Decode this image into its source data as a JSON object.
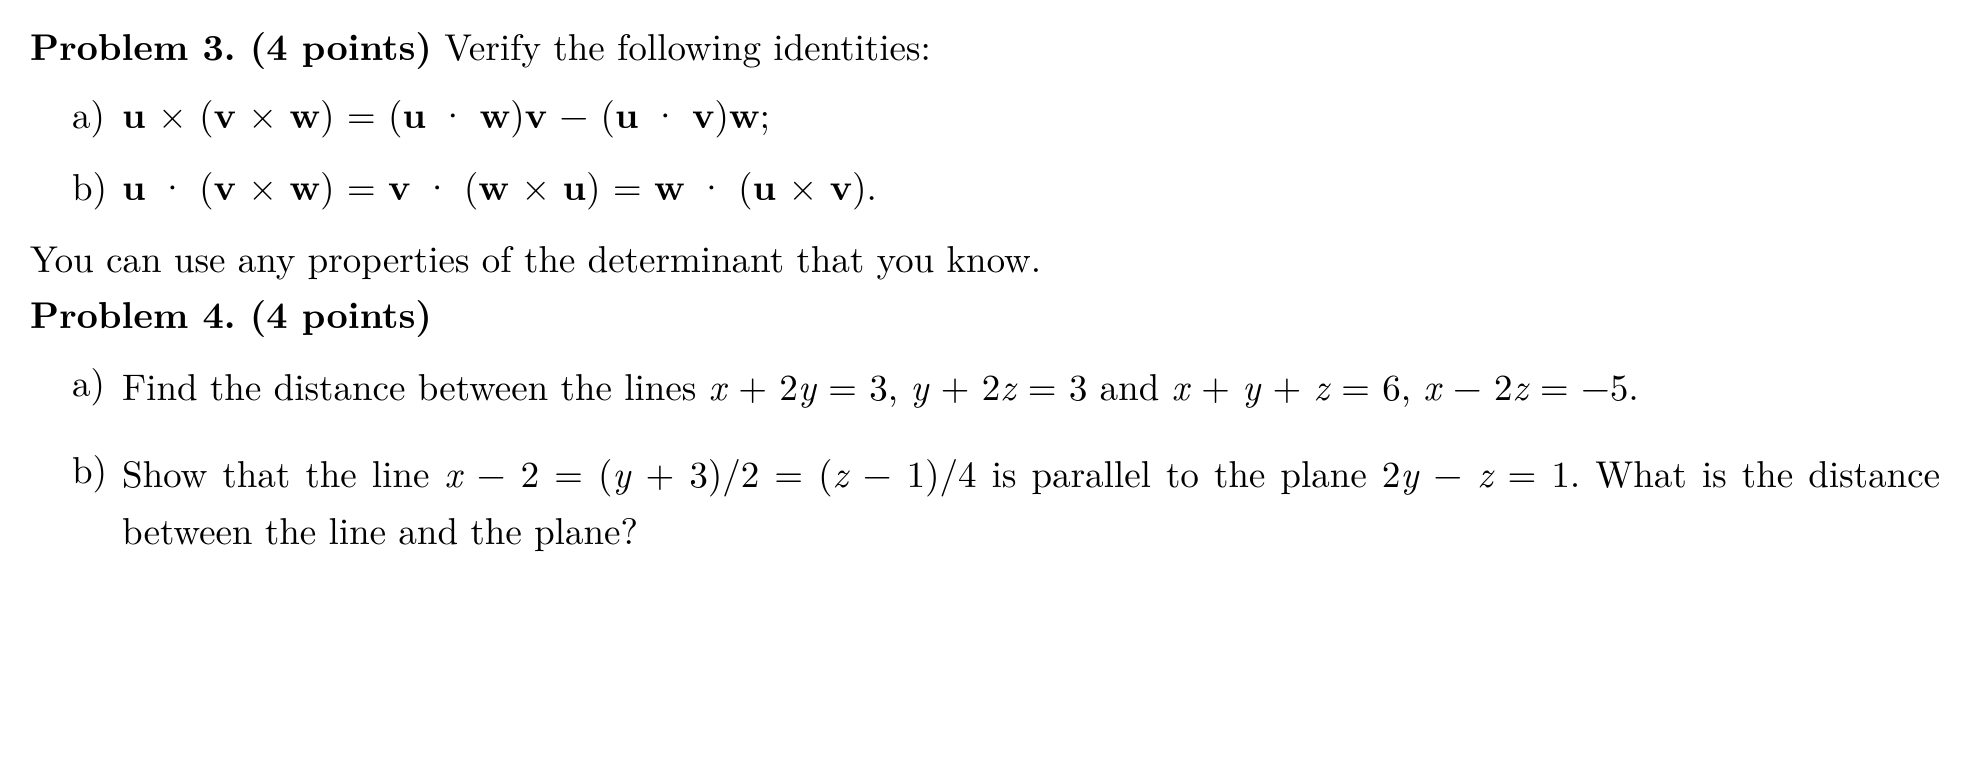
{
  "problem3": {
    "heading_bold": "Problem 3. (4 points)",
    "heading_rest": " Verify the following identities:",
    "items": [
      {
        "label": "a)",
        "html": "<span class='vec'>u</span> × (<span class='vec'>v</span> × <span class='vec'>w</span>) = (<span class='vec'>u</span> · <span class='vec'>w</span>)<span class='vec'>v</span> − (<span class='vec'>u</span> · <span class='vec'>v</span>)<span class='vec'>w</span>;"
      },
      {
        "label": "b)",
        "html": "<span class='vec'>u</span> · (<span class='vec'>v</span> × <span class='vec'>w</span>) = <span class='vec'>v</span> · (<span class='vec'>w</span> × <span class='vec'>u</span>) = <span class='vec'>w</span> · (<span class='vec'>u</span> × <span class='vec'>v</span>)."
      }
    ],
    "note": "You can use any properties of the determinant that you know."
  },
  "problem4": {
    "heading_bold": "Problem 4. (4 points)",
    "items": [
      {
        "label": "a)",
        "html": "Find the distance between the lines <span class='math-it'>x</span> + 2<span class='math-it'>y</span> = 3, <span class='math-it'>y</span> + 2<span class='math-it'>z</span> = 3 and <span class='math-it'>x</span> + <span class='math-it'>y</span> + <span class='math-it'>z</span> = 6, <span class='math-it'>x</span> − 2<span class='math-it'>z</span> = −5."
      },
      {
        "label": "b)",
        "html": "Show that the line <span class='math-it'>x</span> − 2 = (<span class='math-it'>y</span> + 3)/2 = (<span class='math-it'>z</span> − 1)/4 is parallel to the plane 2<span class='math-it'>y</span> − <span class='math-it'>z</span> = 1. What is the distance between the line and the plane?"
      }
    ]
  },
  "style": {
    "background_color": "#ffffff",
    "text_color": "#000000",
    "font_family": "Latin Modern Roman / Computer Modern",
    "font_size_pt": 28,
    "bold_weight": 700,
    "line_height": 1.35
  }
}
